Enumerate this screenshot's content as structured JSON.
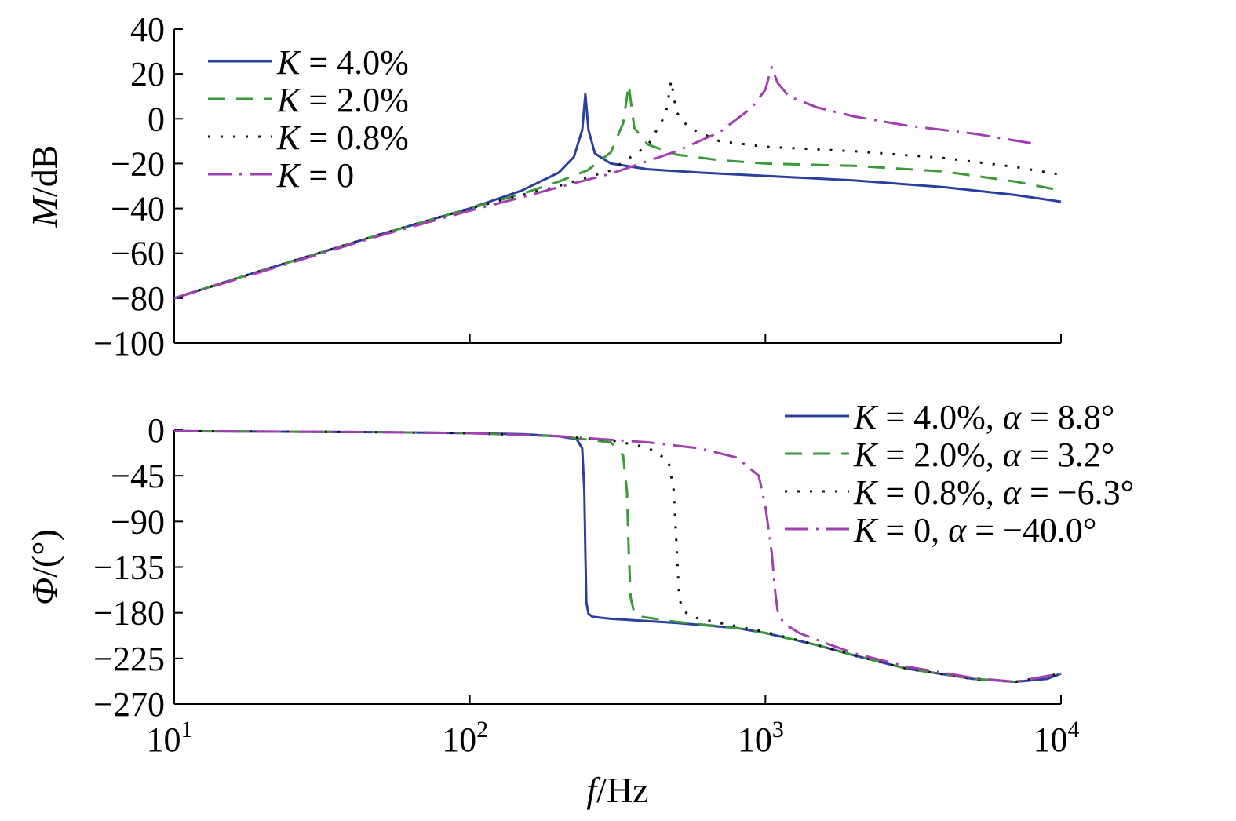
{
  "chart_data": [
    {
      "type": "line",
      "panel": "magnitude",
      "ylabel": "M/dB",
      "ylabel_italic_part": "M",
      "ylabel_rest": "/dB",
      "xlabel": "",
      "x_scale": "log",
      "xlim": [
        10,
        10000
      ],
      "ylim": [
        -100,
        40
      ],
      "yticks": [
        40,
        20,
        0,
        -20,
        -40,
        -60,
        -80,
        -100
      ],
      "ytick_labels": [
        "40",
        "20",
        "0",
        "−20",
        "−40",
        "−60",
        "−80",
        "−100"
      ],
      "grid": false,
      "legend_position": "top-left",
      "series": [
        {
          "name": "K = 4.0%",
          "name_italic": "K",
          "name_rest": " = 4.0%",
          "color": "#2b3f9e",
          "dash": "solid",
          "x": [
            10,
            20,
            50,
            100,
            150,
            200,
            225,
            240,
            246,
            252,
            265,
            300,
            400,
            600,
            1000,
            2000,
            4000,
            7000,
            10000
          ],
          "y": [
            -80,
            -67.5,
            -51.5,
            -40,
            -32,
            -24,
            -17,
            -5,
            11,
            -5,
            -15.5,
            -20,
            -22.5,
            -24,
            -25.5,
            -27.5,
            -30.5,
            -34,
            -37
          ]
        },
        {
          "name": "K = 2.0%",
          "name_italic": "K",
          "name_rest": " = 2.0%",
          "color": "#3a9a3a",
          "dash": "22,14",
          "x": [
            10,
            20,
            50,
            100,
            150,
            200,
            250,
            300,
            330,
            345,
            360,
            400,
            500,
            700,
            1000,
            2000,
            4000,
            7000,
            10000
          ],
          "y": [
            -80,
            -67.5,
            -51.5,
            -40,
            -33.5,
            -28,
            -23,
            -15,
            -2,
            15,
            -4,
            -11.5,
            -16,
            -18.5,
            -20,
            -21,
            -23.5,
            -28,
            -32
          ]
        },
        {
          "name": "K = 0.8%",
          "name_italic": "K",
          "name_rest": " = 0.8%",
          "color": "#111111",
          "dash": "3,13",
          "x": [
            10,
            20,
            50,
            100,
            150,
            200,
            300,
            400,
            460,
            480,
            500,
            550,
            700,
            1000,
            2000,
            4000,
            7000,
            10000
          ],
          "y": [
            -80,
            -67.5,
            -51.5,
            -40,
            -34,
            -30,
            -23,
            -12,
            2,
            17,
            3,
            -4,
            -10,
            -12.5,
            -14.5,
            -17.5,
            -21.5,
            -25
          ]
        },
        {
          "name": "K = 0",
          "name_italic": "K",
          "name_rest": " = 0",
          "color": "#a040b0",
          "dash": "30,10,3,10",
          "x": [
            10,
            20,
            50,
            100,
            150,
            200,
            300,
            500,
            700,
            900,
            1000,
            1050,
            1100,
            1200,
            1500,
            2000,
            3000,
            5000,
            8000
          ],
          "y": [
            -80,
            -68,
            -52,
            -41,
            -35,
            -30.5,
            -24.5,
            -14.5,
            -6,
            5,
            13,
            23,
            16,
            10,
            5,
            1,
            -3,
            -6.5,
            -11
          ]
        }
      ]
    },
    {
      "type": "line",
      "panel": "phase",
      "ylabel": "Φ/(°)",
      "ylabel_italic_part": "Φ",
      "ylabel_rest": "/(°)",
      "xlabel": "f/Hz",
      "xlabel_italic_part": "f",
      "xlabel_rest": "/Hz",
      "x_scale": "log",
      "xlim": [
        10,
        10000
      ],
      "xticks": [
        10,
        100,
        1000,
        10000
      ],
      "xtick_bases": [
        "10",
        "10",
        "10",
        "10"
      ],
      "xtick_exps": [
        "1",
        "2",
        "3",
        "4"
      ],
      "ylim": [
        -270,
        0
      ],
      "yticks": [
        0,
        -45,
        -90,
        -135,
        -180,
        -225,
        -270
      ],
      "ytick_labels": [
        "0",
        "−45",
        "−90",
        "−135",
        "−180",
        "−225",
        "−270"
      ],
      "grid": false,
      "legend_position": "top-right",
      "series": [
        {
          "name": "K = 4.0%, α = 8.8°",
          "name_italic": "K",
          "name_mid": " = 4.0%, ",
          "name_italic2": "α",
          "name_rest": " = 8.8°",
          "color": "#2b3f9e",
          "dash": "solid",
          "x": [
            10,
            20,
            50,
            100,
            150,
            200,
            230,
            240,
            244,
            246,
            248,
            252,
            260,
            300,
            500,
            800,
            1000,
            1500,
            2000,
            3000,
            5000,
            7000,
            9000,
            10000
          ],
          "y": [
            -1,
            -1.5,
            -2,
            -3,
            -4,
            -6,
            -9,
            -18,
            -60,
            -120,
            -170,
            -181,
            -184,
            -186,
            -190,
            -195,
            -200,
            -212,
            -222,
            -235,
            -245,
            -248,
            -245,
            -240
          ]
        },
        {
          "name": "K = 2.0%, α = 3.2°",
          "name_italic": "K",
          "name_mid": " = 2.0%, ",
          "name_italic2": "α",
          "name_rest": " = 3.2°",
          "color": "#3a9a3a",
          "dash": "22,14",
          "x": [
            10,
            50,
            100,
            200,
            300,
            330,
            340,
            345,
            350,
            360,
            380,
            500,
            800,
            1000,
            1500,
            2000,
            3000,
            5000,
            7000,
            10000
          ],
          "y": [
            -1,
            -2,
            -3,
            -6,
            -12,
            -25,
            -60,
            -120,
            -165,
            -180,
            -184,
            -189,
            -195,
            -200,
            -212,
            -222,
            -235,
            -245,
            -248,
            -240
          ]
        },
        {
          "name": "K = 0.8%, α = −6.3°",
          "name_italic": "K",
          "name_mid": " = 0.8%, ",
          "name_italic2": "α",
          "name_rest": " = −6.3°",
          "color": "#111111",
          "dash": "3,13",
          "x": [
            10,
            50,
            100,
            200,
            300,
            400,
            470,
            490,
            500,
            510,
            520,
            560,
            700,
            1000,
            1500,
            2000,
            3000,
            5000,
            7000,
            10000
          ],
          "y": [
            -1,
            -2,
            -3,
            -6,
            -10,
            -17,
            -30,
            -60,
            -110,
            -160,
            -176,
            -184,
            -190,
            -199,
            -212,
            -222,
            -235,
            -245,
            -248,
            -240
          ]
        },
        {
          "name": "K = 0, α = −40.0°",
          "name_italic": "K",
          "name_mid": " = 0, ",
          "name_italic2": "α",
          "name_rest": " = −40.0°",
          "color": "#a040b0",
          "dash": "30,10,3,10",
          "x": [
            10,
            50,
            100,
            200,
            400,
            600,
            800,
            950,
            1000,
            1050,
            1080,
            1100,
            1150,
            1300,
            1600,
            2000,
            3000,
            5000,
            7000,
            10000
          ],
          "y": [
            -1,
            -2,
            -3,
            -6,
            -12,
            -18,
            -27,
            -45,
            -75,
            -120,
            -160,
            -178,
            -190,
            -200,
            -210,
            -220,
            -233,
            -244,
            -248,
            -240
          ]
        }
      ]
    }
  ]
}
